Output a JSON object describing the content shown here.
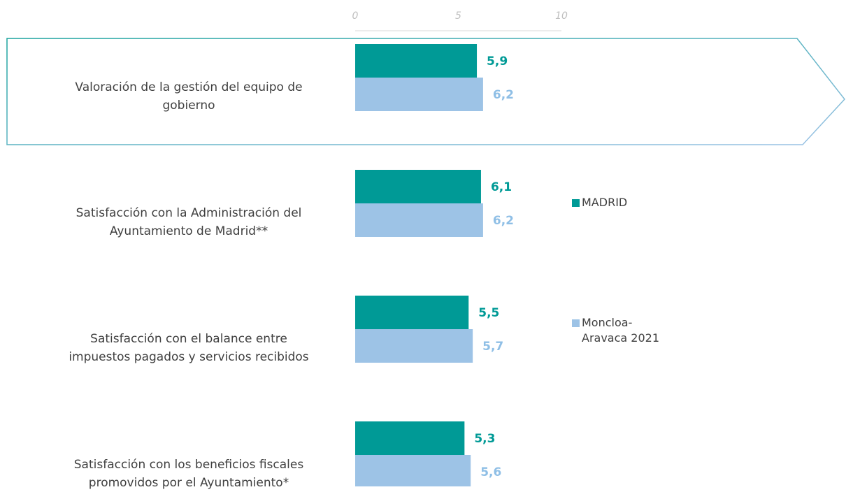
{
  "chart_data": {
    "type": "hbar",
    "categories": [
      "Valoración de la gestión del equipo de\ngobierno",
      "Satisfacción con la Administración del\nAyuntamiento de Madrid**",
      "Satisfacción con el balance entre\nimpuestos pagados y servicios recibidos",
      "Satisfacción con los beneficios fiscales\npromovidos por el Ayuntamiento*"
    ],
    "series": [
      {
        "name": "MADRID",
        "color": "#009a96",
        "values": [
          5.9,
          6.1,
          5.5,
          5.3
        ],
        "value_labels": [
          "5,9",
          "6,1",
          "5,5",
          "5,3"
        ]
      },
      {
        "name": "Moncloa-Aravaca 2021",
        "color": "#9dc3e6",
        "values": [
          6.2,
          6.2,
          5.7,
          5.6
        ],
        "value_labels": [
          "6,2",
          "6,2",
          "5,7",
          "5,6"
        ]
      }
    ],
    "xlim": [
      0,
      10
    ],
    "xticks": [
      0,
      5,
      10
    ]
  }
}
